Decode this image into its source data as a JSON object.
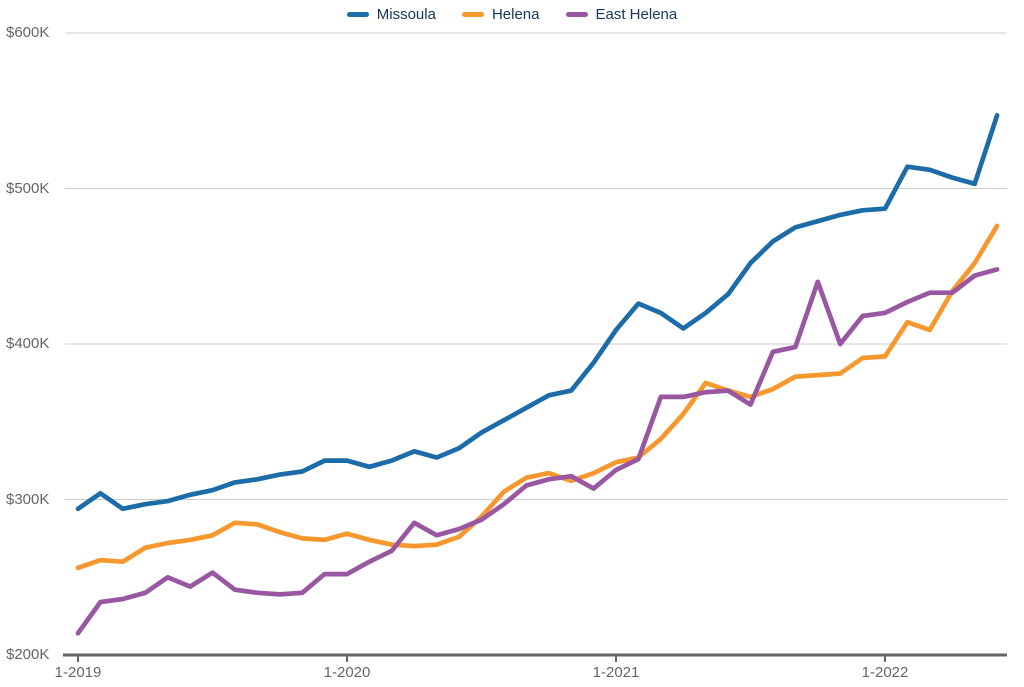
{
  "legend": {
    "items": [
      {
        "label": "Missoula",
        "color": "#1B6CA8"
      },
      {
        "label": "Helena",
        "color": "#F7982F"
      },
      {
        "label": "East Helena",
        "color": "#9957A2"
      }
    ]
  },
  "chart_data": {
    "type": "line",
    "title": "",
    "xlabel": "",
    "ylabel": "",
    "y_unit": "USD thousands",
    "ylim": [
      200,
      600
    ],
    "grid": true,
    "legend_position": "top",
    "x_frequency": "monthly",
    "x_start": "1-2019",
    "x_end": "6-2022",
    "x_tick_labels": [
      "1-2019",
      "1-2020",
      "1-2021",
      "1-2022"
    ],
    "x_tick_month_indices": [
      0,
      12,
      24,
      36
    ],
    "y_ticks": [
      {
        "label": "$200K",
        "value": 200
      },
      {
        "label": "$300K",
        "value": 300
      },
      {
        "label": "$400K",
        "value": 400
      },
      {
        "label": "$500K",
        "value": 500
      },
      {
        "label": "$600K",
        "value": 600
      }
    ],
    "months": [
      "1-2019",
      "2-2019",
      "3-2019",
      "4-2019",
      "5-2019",
      "6-2019",
      "7-2019",
      "8-2019",
      "9-2019",
      "10-2019",
      "11-2019",
      "12-2019",
      "1-2020",
      "2-2020",
      "3-2020",
      "4-2020",
      "5-2020",
      "6-2020",
      "7-2020",
      "8-2020",
      "9-2020",
      "10-2020",
      "11-2020",
      "12-2020",
      "1-2021",
      "2-2021",
      "3-2021",
      "4-2021",
      "5-2021",
      "6-2021",
      "7-2021",
      "8-2021",
      "9-2021",
      "10-2021",
      "11-2021",
      "12-2021",
      "1-2022",
      "2-2022",
      "3-2022",
      "4-2022",
      "5-2022",
      "6-2022"
    ],
    "series": [
      {
        "name": "Missoula",
        "color": "#1B6CA8",
        "values": [
          294,
          304,
          294,
          297,
          299,
          303,
          306,
          311,
          313,
          316,
          318,
          325,
          325,
          321,
          325,
          331,
          327,
          333,
          343,
          351,
          359,
          367,
          370,
          388,
          409,
          426,
          420,
          410,
          420,
          432,
          452,
          466,
          475,
          479,
          483,
          486,
          487,
          514,
          512,
          507,
          503,
          547
        ]
      },
      {
        "name": "Helena",
        "color": "#F7982F",
        "values": [
          256,
          261,
          260,
          269,
          272,
          274,
          277,
          285,
          284,
          279,
          275,
          274,
          278,
          274,
          271,
          270,
          271,
          276,
          289,
          305,
          314,
          317,
          312,
          317,
          324,
          327,
          339,
          355,
          375,
          370,
          366,
          371,
          379,
          380,
          381,
          391,
          392,
          414,
          409,
          434,
          452,
          476
        ]
      },
      {
        "name": "East Helena",
        "color": "#9957A2",
        "values": [
          214,
          234,
          236,
          240,
          250,
          244,
          253,
          242,
          240,
          239,
          240,
          252,
          252,
          260,
          267,
          285,
          277,
          281,
          287,
          297,
          309,
          313,
          315,
          307,
          319,
          326,
          366,
          366,
          369,
          370,
          361,
          395,
          398,
          440,
          400,
          418,
          420,
          427,
          433,
          433,
          444,
          448
        ]
      }
    ]
  },
  "colors": {
    "background": "#ffffff",
    "gridline": "#cccccc",
    "axis_line": "#666666",
    "tick_label_text": "#666666",
    "legend_text": "#17365D"
  }
}
